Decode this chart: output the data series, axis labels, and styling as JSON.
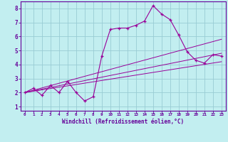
{
  "xlabel": "Windchill (Refroidissement éolien,°C)",
  "bg_color": "#c2eef0",
  "grid_color": "#99ccd4",
  "line_color": "#990099",
  "axis_color": "#660099",
  "xlim": [
    -0.5,
    23.5
  ],
  "ylim": [
    0.7,
    8.5
  ],
  "xticks": [
    0,
    1,
    2,
    3,
    4,
    5,
    6,
    7,
    8,
    9,
    10,
    11,
    12,
    13,
    14,
    15,
    16,
    17,
    18,
    19,
    20,
    21,
    22,
    23
  ],
  "yticks": [
    1,
    2,
    3,
    4,
    5,
    6,
    7,
    8
  ],
  "main_series_x": [
    0,
    1,
    2,
    3,
    4,
    5,
    6,
    7,
    8,
    9,
    10,
    11,
    12,
    13,
    14,
    15,
    16,
    17,
    18,
    19,
    20,
    21,
    22,
    23
  ],
  "main_series_y": [
    2.0,
    2.3,
    1.8,
    2.5,
    2.0,
    2.8,
    2.0,
    1.4,
    1.7,
    4.6,
    6.5,
    6.6,
    6.6,
    6.8,
    7.1,
    8.2,
    7.6,
    7.2,
    6.1,
    4.9,
    4.3,
    4.1,
    4.7,
    4.6
  ],
  "reg_line1_x": [
    0,
    23
  ],
  "reg_line1_y": [
    2.0,
    5.8
  ],
  "reg_line2_x": [
    0,
    23
  ],
  "reg_line2_y": [
    2.0,
    4.8
  ],
  "reg_line3_x": [
    0,
    23
  ],
  "reg_line3_y": [
    2.0,
    4.2
  ]
}
